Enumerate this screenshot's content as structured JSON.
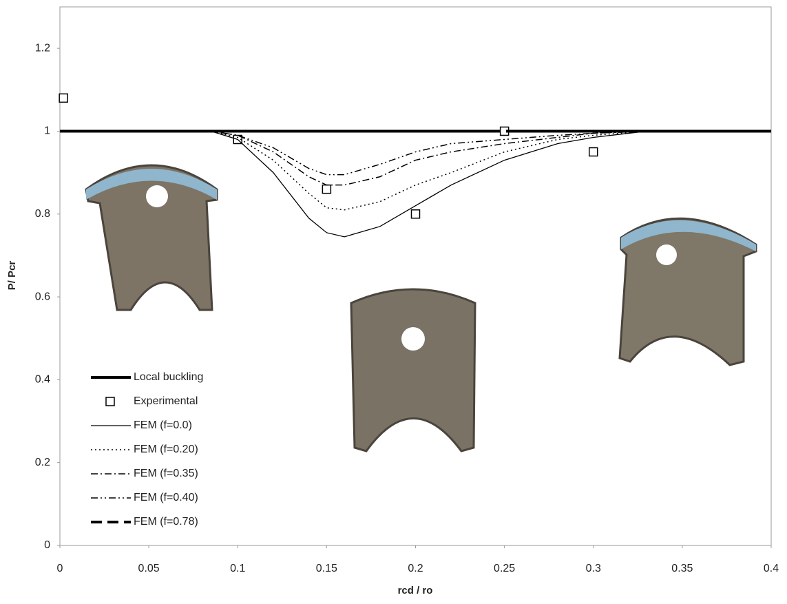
{
  "chart_data": {
    "type": "line",
    "x_label": "rcd / ro",
    "y_label": "P/ Pcr",
    "xlim": [
      0,
      0.4
    ],
    "xticks": [
      0,
      0.05,
      0.1,
      0.15,
      0.2,
      0.25,
      0.3,
      0.35,
      0.4
    ],
    "ylim": [
      0,
      1.3
    ],
    "yticks": [
      0,
      0.2,
      0.4,
      0.6,
      0.8,
      1,
      1.2
    ],
    "legend": "lower left",
    "x": [
      0,
      0.085,
      0.1,
      0.12,
      0.14,
      0.15,
      0.16,
      0.18,
      0.2,
      0.22,
      0.25,
      0.28,
      0.3,
      0.33,
      0.4
    ],
    "series": [
      {
        "name": "Local buckling",
        "color": "#000000",
        "width": 4,
        "dash": "none",
        "values": [
          1,
          1,
          1,
          1,
          1,
          1,
          1,
          1,
          1,
          1,
          1,
          1,
          1,
          1,
          1
        ]
      },
      {
        "name": "Experimental",
        "color": "#000000",
        "mode": "markers",
        "x": [
          0.002,
          0.1,
          0.15,
          0.2,
          0.25,
          0.3
        ],
        "values": [
          1.08,
          0.98,
          0.86,
          0.8,
          1.0,
          0.95
        ]
      },
      {
        "name": "FEM (f=0.0)",
        "color": "#000000",
        "width": 1.3,
        "dash": "none",
        "values": [
          1,
          1,
          0.98,
          0.9,
          0.79,
          0.755,
          0.745,
          0.77,
          0.82,
          0.87,
          0.93,
          0.97,
          0.985,
          1,
          1
        ]
      },
      {
        "name": "FEM (f=0.20)",
        "color": "#000000",
        "width": 1.5,
        "dash": "2 4",
        "values": [
          1,
          1,
          0.985,
          0.93,
          0.85,
          0.815,
          0.81,
          0.83,
          0.87,
          0.9,
          0.95,
          0.98,
          0.99,
          1,
          1
        ]
      },
      {
        "name": "FEM (f=0.35)",
        "color": "#000000",
        "width": 1.5,
        "dash": "10 4 2 4",
        "values": [
          1,
          1,
          0.99,
          0.95,
          0.89,
          0.87,
          0.87,
          0.89,
          0.93,
          0.95,
          0.97,
          0.985,
          0.995,
          1,
          1
        ]
      },
      {
        "name": "FEM (f=0.40)",
        "color": "#000000",
        "width": 1.5,
        "dash": "10 4 2 4 2 4",
        "values": [
          1,
          1,
          0.99,
          0.96,
          0.91,
          0.895,
          0.895,
          0.92,
          0.95,
          0.97,
          0.98,
          0.99,
          0.995,
          1,
          1
        ]
      },
      {
        "name": "FEM (f=0.78)",
        "color": "#000000",
        "width": 4,
        "dash": "16 8",
        "values": [
          1,
          1,
          1,
          1,
          1,
          1,
          1,
          1,
          1,
          1,
          1,
          1,
          1,
          1,
          1
        ]
      }
    ]
  }
}
